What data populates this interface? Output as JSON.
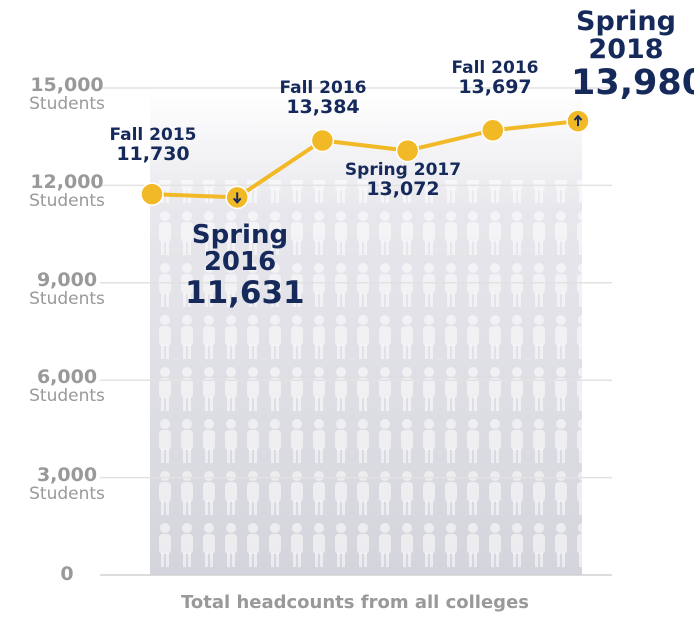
{
  "chart_data": {
    "type": "line",
    "x_label": "Total headcounts from all colleges",
    "categories": [
      "Fall 2015",
      "Spring 2016",
      "Fall 2016",
      "Spring 2017",
      "Fall 2016",
      "Spring 2018"
    ],
    "series": [
      {
        "name": null,
        "color": "#f2b927",
        "values": [
          11730,
          11631,
          13384,
          13072,
          13697,
          13980
        ],
        "value_labels": [
          "11,730",
          "11,631",
          "13,384",
          "13,072",
          "13,697",
          "13,980"
        ]
      }
    ],
    "ylim": [
      0,
      15000
    ],
    "yticks": [
      0,
      {
        "value": 3000,
        "label": "3,000"
      },
      {
        "value": 6000,
        "label": "6,000"
      },
      {
        "value": 9000,
        "label": "9,000"
      },
      {
        "value": 12000,
        "label": "12,000"
      },
      {
        "value": 15000,
        "label": "15,000"
      }
    ],
    "ytick_unit": "Students",
    "grid": true
  }
}
